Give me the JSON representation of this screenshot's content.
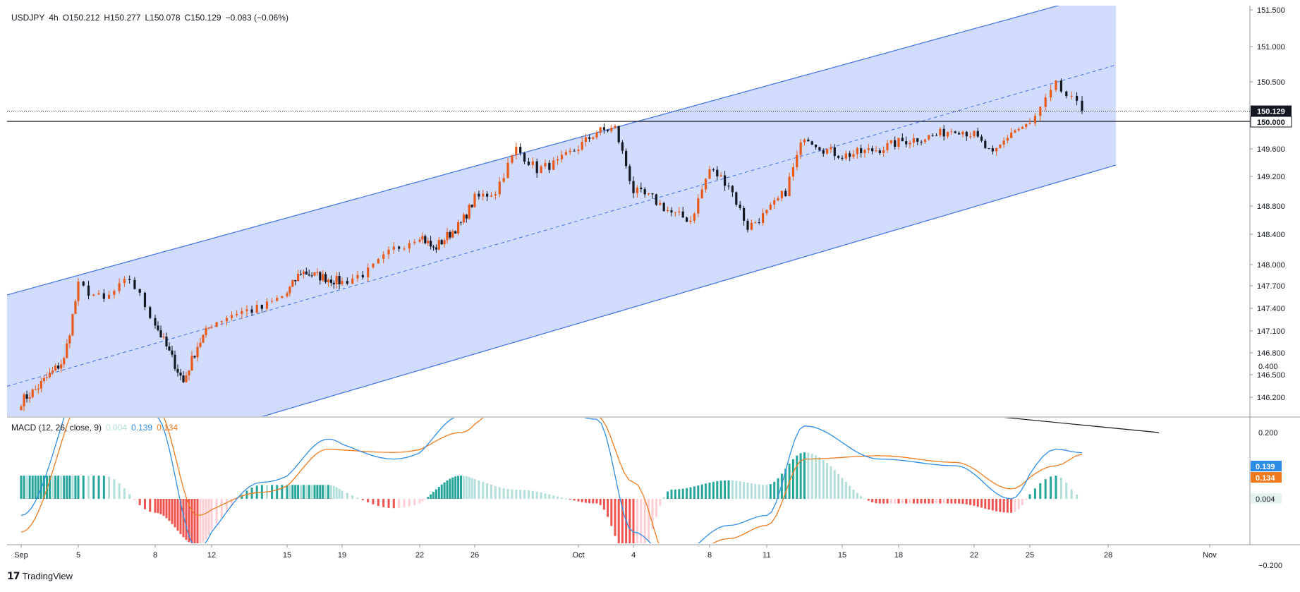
{
  "header": {
    "symbol": "USDJPY",
    "interval": "4h",
    "open": "O150.212",
    "high": "H150.277",
    "low": "L150.078",
    "close": "C150.129",
    "change": "−0.083 (−0.06%)"
  },
  "macd_header": {
    "label": "MACD (12, 26, close, 9)",
    "hist": "0.004",
    "macd": "0.139",
    "signal": "0.134"
  },
  "colors": {
    "up": "#e8591a",
    "down": "#131722",
    "channel_fill": "#d1dcfd",
    "channel_line": "#3f6fe6",
    "macd_line": "#2d8de6",
    "signal_line": "#f07b1f",
    "hist_pos_strong": "#26a69a",
    "hist_pos_weak": "#b2dfdb",
    "hist_neg_strong": "#ef5350",
    "hist_neg_weak": "#ffcdd2"
  },
  "price_axis": {
    "ticks": [
      "151.500",
      "151.000",
      "150.500",
      "150.129",
      "150.000",
      "149.600",
      "149.200",
      "148.800",
      "148.400",
      "148.000",
      "147.700",
      "147.400",
      "147.100",
      "146.800",
      "146.500",
      "146.200"
    ],
    "last_price_label": "150.129",
    "level_label": "150.000"
  },
  "macd_axis": {
    "ticks": [
      "0.400",
      "0.200",
      "0.004",
      "−0.200"
    ],
    "macd_label": "0.139",
    "signal_label": "0.134",
    "hist_label": "0.004"
  },
  "time_axis": {
    "labels": [
      "Sep",
      "5",
      "8",
      "12",
      "15",
      "19",
      "22",
      "26",
      "Oct",
      "4",
      "8",
      "11",
      "15",
      "18",
      "22",
      "25",
      "28",
      "Nov"
    ]
  },
  "brand": "TradingView",
  "chart_data": {
    "type": "candlestick",
    "title": "USDJPY, 4h",
    "ylim": [
      146.0,
      151.55
    ],
    "horizontal_level": 150.0,
    "last_price": 150.129,
    "channel": {
      "description": "ascending regression channel",
      "upper": [
        {
          "date": "Sep 1",
          "y": 147.63
        },
        {
          "date": "Oct 26",
          "y": 151.55
        }
      ],
      "middle": [
        {
          "date": "Sep 1",
          "y": 146.4
        },
        {
          "date": "Oct 27",
          "y": 150.6
        }
      ],
      "lower": [
        {
          "date": "Sep 1",
          "y": 145.0
        },
        {
          "date": "Oct 27",
          "y": 149.22
        }
      ]
    },
    "price_series": {
      "name": "USDJPY",
      "x": [
        "Sep 1",
        "Sep 2",
        "Sep 4",
        "Sep 5",
        "Sep 6",
        "Sep 7",
        "Sep 8",
        "Sep 10",
        "Sep 11",
        "Sep 12",
        "Sep 13",
        "Sep 14",
        "Sep 15",
        "Sep 16",
        "Sep 18",
        "Sep 19",
        "Sep 20",
        "Sep 21",
        "Sep 22",
        "Sep 23",
        "Sep 25",
        "Sep 26",
        "Sep 27",
        "Sep 28",
        "Sep 29",
        "Sep 30",
        "Oct 2",
        "Oct 3",
        "Oct 4",
        "Oct 5",
        "Oct 6",
        "Oct 7",
        "Oct 8",
        "Oct 9",
        "Oct 10",
        "Oct 11",
        "Oct 12",
        "Oct 13",
        "Oct 14",
        "Oct 15",
        "Oct 16",
        "Oct 17",
        "Oct 18",
        "Oct 19",
        "Oct 20",
        "Oct 21",
        "Oct 22",
        "Oct 23",
        "Oct 24",
        "Oct 25",
        "Oct 26",
        "Oct 27"
      ],
      "close": [
        146.15,
        146.3,
        146.7,
        147.7,
        147.5,
        147.8,
        147.2,
        146.4,
        146.9,
        147.2,
        147.35,
        147.4,
        147.6,
        147.9,
        147.8,
        147.75,
        147.9,
        148.2,
        148.4,
        148.2,
        148.55,
        148.9,
        149.0,
        149.6,
        149.3,
        149.4,
        149.85,
        149.9,
        149.0,
        148.9,
        148.7,
        148.6,
        149.3,
        149.1,
        148.5,
        148.7,
        149.0,
        149.8,
        149.6,
        149.5,
        149.55,
        149.6,
        149.7,
        149.75,
        149.8,
        149.9,
        149.8,
        149.5,
        149.85,
        149.95,
        150.45,
        150.13
      ]
    },
    "series": [
      {
        "name": "MACD",
        "x": [
          "Sep 1",
          "Sep 6",
          "Sep 8",
          "Sep 11",
          "Sep 14",
          "Sep 18",
          "Sep 21",
          "Sep 25",
          "Sep 28",
          "Oct 2",
          "Oct 4",
          "Oct 6",
          "Oct 9",
          "Oct 11",
          "Oct 13",
          "Oct 17",
          "Oct 21",
          "Oct 24",
          "Oct 26",
          "Oct 27"
        ],
        "values": [
          -0.05,
          0.4,
          0.25,
          -0.15,
          0.05,
          0.18,
          0.12,
          0.25,
          0.32,
          0.24,
          -0.1,
          -0.18,
          -0.08,
          -0.05,
          0.22,
          0.12,
          0.1,
          0.0,
          0.15,
          0.139
        ]
      },
      {
        "name": "Signal",
        "x": [
          "Sep 1",
          "Sep 6",
          "Sep 8",
          "Sep 11",
          "Sep 14",
          "Sep 18",
          "Sep 21",
          "Sep 25",
          "Sep 28",
          "Oct 2",
          "Oct 4",
          "Oct 6",
          "Oct 9",
          "Oct 11",
          "Oct 13",
          "Oct 17",
          "Oct 21",
          "Oct 24",
          "Oct 26",
          "Oct 27"
        ],
        "values": [
          -0.1,
          0.35,
          0.28,
          -0.05,
          0.02,
          0.15,
          0.14,
          0.2,
          0.3,
          0.25,
          0.05,
          -0.2,
          -0.12,
          -0.08,
          0.12,
          0.13,
          0.11,
          0.03,
          0.1,
          0.134
        ]
      }
    ],
    "divergence_trendline": [
      {
        "date": "Sep 28",
        "y": 0.39
      },
      {
        "date": "Oct 30",
        "y": 0.2
      }
    ],
    "macd_ylim": [
      -0.26,
      0.45
    ]
  }
}
